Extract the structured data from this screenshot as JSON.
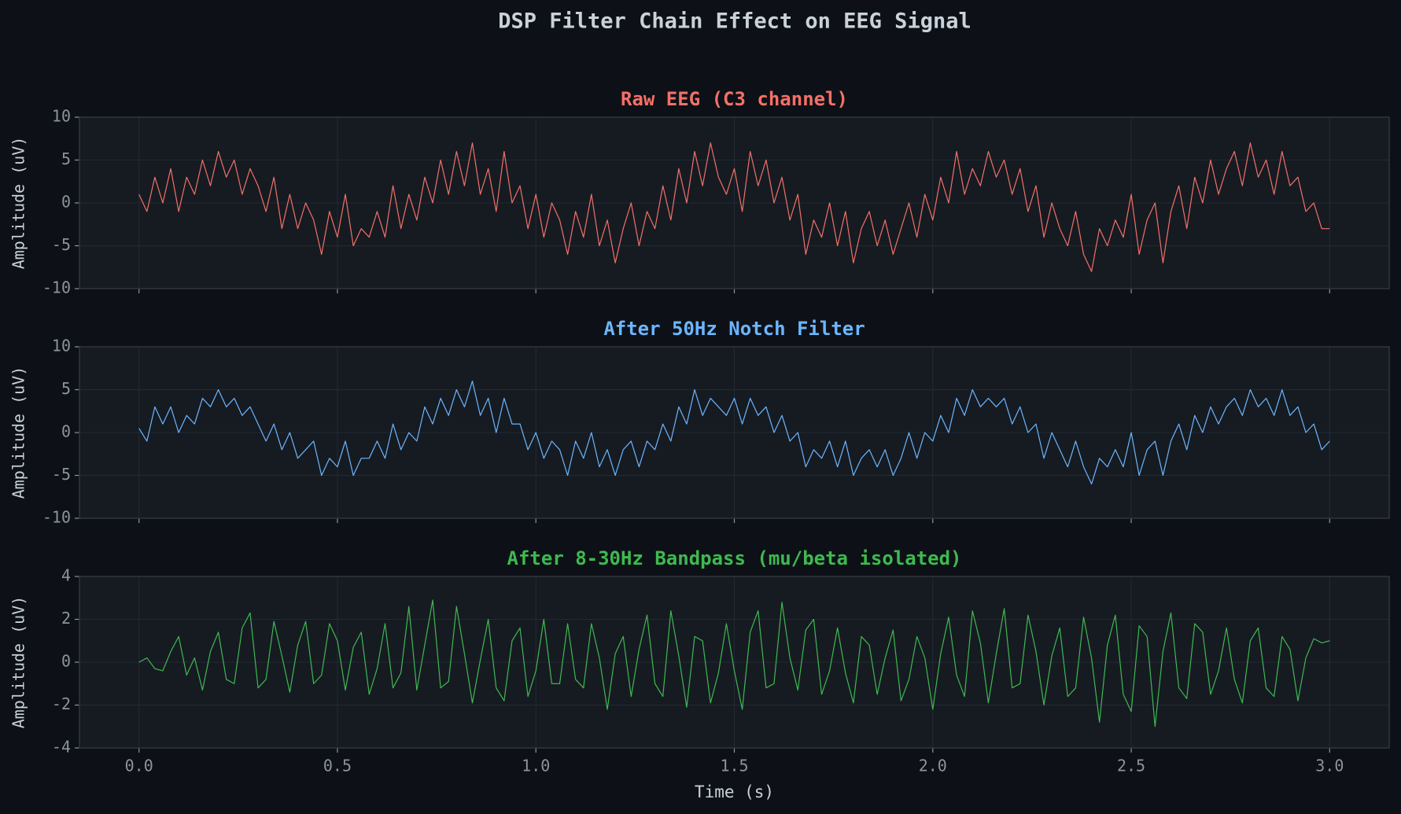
{
  "title": "DSP Filter Chain Effect on EEG Signal",
  "chart_data": [
    {
      "type": "line",
      "title": "Raw EEG (C3 channel)",
      "ylabel": "Amplitude (uV)",
      "x": [
        0,
        0.02,
        0.04,
        0.06,
        0.08,
        0.1,
        0.12,
        0.14,
        0.16,
        0.18,
        0.2,
        0.22,
        0.24,
        0.26,
        0.28,
        0.3,
        0.32,
        0.34,
        0.36,
        0.38,
        0.4,
        0.42,
        0.44,
        0.46,
        0.48,
        0.5,
        0.52,
        0.54,
        0.56,
        0.58,
        0.6,
        0.62,
        0.64,
        0.66,
        0.68,
        0.7,
        0.72,
        0.74,
        0.76,
        0.78,
        0.8,
        0.82,
        0.84,
        0.86,
        0.88,
        0.9,
        0.92,
        0.94,
        0.96,
        0.98,
        1,
        1.02,
        1.04,
        1.06,
        1.08,
        1.1,
        1.12,
        1.14,
        1.16,
        1.18,
        1.2,
        1.22,
        1.24,
        1.26,
        1.28,
        1.3,
        1.32,
        1.34,
        1.36,
        1.38,
        1.4,
        1.42,
        1.44,
        1.46,
        1.48,
        1.5,
        1.52,
        1.54,
        1.56,
        1.58,
        1.6,
        1.62,
        1.64,
        1.66,
        1.68,
        1.7,
        1.72,
        1.74,
        1.76,
        1.78,
        1.8,
        1.82,
        1.84,
        1.86,
        1.88,
        1.9,
        1.92,
        1.94,
        1.96,
        1.98,
        2,
        2.02,
        2.04,
        2.06,
        2.08,
        2.1,
        2.12,
        2.14,
        2.16,
        2.18,
        2.2,
        2.22,
        2.24,
        2.26,
        2.28,
        2.3,
        2.32,
        2.34,
        2.36,
        2.38,
        2.4,
        2.42,
        2.44,
        2.46,
        2.48,
        2.5,
        2.52,
        2.54,
        2.56,
        2.58,
        2.6,
        2.62,
        2.64,
        2.66,
        2.68,
        2.7,
        2.72,
        2.74,
        2.76,
        2.78,
        2.8,
        2.82,
        2.84,
        2.86,
        2.88,
        2.9,
        2.92,
        2.94,
        2.96,
        2.98,
        3
      ],
      "series": [
        {
          "color": "#f47067",
          "values": [
            1,
            -1,
            3,
            0,
            4,
            -1,
            3,
            1,
            5,
            2,
            6,
            3,
            5,
            1,
            4,
            2,
            -1,
            3,
            -3,
            1,
            -3,
            0,
            -2,
            -6,
            -1,
            -4,
            1,
            -5,
            -3,
            -4,
            -1,
            -4,
            2,
            -3,
            1,
            -2,
            3,
            0,
            5,
            1,
            6,
            2,
            7,
            1,
            4,
            -1,
            6,
            0,
            2,
            -3,
            1,
            -4,
            0,
            -2,
            -6,
            -1,
            -4,
            1,
            -5,
            -2,
            -7,
            -3,
            0,
            -5,
            -1,
            -3,
            2,
            -2,
            4,
            0,
            6,
            2,
            7,
            3,
            1,
            4,
            -1,
            6,
            2,
            5,
            0,
            3,
            -2,
            1,
            -6,
            -2,
            -4,
            0,
            -5,
            -1,
            -7,
            -3,
            -1,
            -5,
            -2,
            -6,
            -3,
            0,
            -4,
            1,
            -2,
            3,
            0,
            6,
            1,
            4,
            2,
            6,
            3,
            5,
            1,
            4,
            -1,
            2,
            -4,
            0,
            -3,
            -5,
            -1,
            -6,
            -8,
            -3,
            -5,
            -2,
            -4,
            1,
            -6,
            -2,
            0,
            -7,
            -1,
            2,
            -3,
            3,
            0,
            5,
            1,
            4,
            6,
            2,
            7,
            3,
            5,
            1,
            6,
            2,
            3,
            -1,
            0,
            -3,
            -3
          ]
        }
      ],
      "xlim": [
        -0.15,
        3.15
      ],
      "xticks": [
        0,
        0.5,
        1,
        1.5,
        2,
        2.5,
        3
      ],
      "ylim": [
        -10,
        10
      ],
      "yticks": [
        -10,
        -5,
        0,
        5,
        10
      ],
      "grid": true
    },
    {
      "type": "line",
      "title": "After 50Hz Notch Filter",
      "ylabel": "Amplitude (uV)",
      "x": [
        0,
        0.02,
        0.04,
        0.06,
        0.08,
        0.1,
        0.12,
        0.14,
        0.16,
        0.18,
        0.2,
        0.22,
        0.24,
        0.26,
        0.28,
        0.3,
        0.32,
        0.34,
        0.36,
        0.38,
        0.4,
        0.42,
        0.44,
        0.46,
        0.48,
        0.5,
        0.52,
        0.54,
        0.56,
        0.58,
        0.6,
        0.62,
        0.64,
        0.66,
        0.68,
        0.7,
        0.72,
        0.74,
        0.76,
        0.78,
        0.8,
        0.82,
        0.84,
        0.86,
        0.88,
        0.9,
        0.92,
        0.94,
        0.96,
        0.98,
        1,
        1.02,
        1.04,
        1.06,
        1.08,
        1.1,
        1.12,
        1.14,
        1.16,
        1.18,
        1.2,
        1.22,
        1.24,
        1.26,
        1.28,
        1.3,
        1.32,
        1.34,
        1.36,
        1.38,
        1.4,
        1.42,
        1.44,
        1.46,
        1.48,
        1.5,
        1.52,
        1.54,
        1.56,
        1.58,
        1.6,
        1.62,
        1.64,
        1.66,
        1.68,
        1.7,
        1.72,
        1.74,
        1.76,
        1.78,
        1.8,
        1.82,
        1.84,
        1.86,
        1.88,
        1.9,
        1.92,
        1.94,
        1.96,
        1.98,
        2,
        2.02,
        2.04,
        2.06,
        2.08,
        2.1,
        2.12,
        2.14,
        2.16,
        2.18,
        2.2,
        2.22,
        2.24,
        2.26,
        2.28,
        2.3,
        2.32,
        2.34,
        2.36,
        2.38,
        2.4,
        2.42,
        2.44,
        2.46,
        2.48,
        2.5,
        2.52,
        2.54,
        2.56,
        2.58,
        2.6,
        2.62,
        2.64,
        2.66,
        2.68,
        2.7,
        2.72,
        2.74,
        2.76,
        2.78,
        2.8,
        2.82,
        2.84,
        2.86,
        2.88,
        2.9,
        2.92,
        2.94,
        2.96,
        2.98,
        3
      ],
      "series": [
        {
          "color": "#6cb6ff",
          "values": [
            0.5,
            -1,
            3,
            1,
            3,
            0,
            2,
            1,
            4,
            3,
            5,
            3,
            4,
            2,
            3,
            1,
            -1,
            1,
            -2,
            0,
            -3,
            -2,
            -1,
            -5,
            -3,
            -4,
            -1,
            -5,
            -3,
            -3,
            -1,
            -3,
            1,
            -2,
            0,
            -1,
            3,
            1,
            4,
            2,
            5,
            3,
            6,
            2,
            4,
            0,
            4,
            1,
            1,
            -2,
            0,
            -3,
            -1,
            -2,
            -5,
            -1,
            -3,
            0,
            -4,
            -2,
            -5,
            -2,
            -1,
            -4,
            -1,
            -2,
            1,
            -1,
            3,
            1,
            5,
            2,
            4,
            3,
            2,
            4,
            1,
            4,
            2,
            3,
            0,
            2,
            -1,
            0,
            -4,
            -2,
            -3,
            -1,
            -4,
            -1,
            -5,
            -3,
            -2,
            -4,
            -2,
            -5,
            -3,
            0,
            -3,
            0,
            -1,
            2,
            0,
            4,
            2,
            5,
            3,
            4,
            3,
            4,
            1,
            3,
            0,
            1,
            -3,
            0,
            -2,
            -4,
            -1,
            -4,
            -6,
            -3,
            -4,
            -2,
            -4,
            0,
            -5,
            -2,
            -1,
            -5,
            -1,
            1,
            -2,
            2,
            0,
            3,
            1,
            3,
            4,
            2,
            5,
            3,
            4,
            2,
            5,
            2,
            3,
            0,
            1,
            -2,
            -1
          ]
        }
      ],
      "xlim": [
        -0.15,
        3.15
      ],
      "xticks": [
        0,
        0.5,
        1,
        1.5,
        2,
        2.5,
        3
      ],
      "ylim": [
        -10,
        10
      ],
      "yticks": [
        -10,
        -5,
        0,
        5,
        10
      ],
      "grid": true
    },
    {
      "type": "line",
      "title": "After 8-30Hz Bandpass (mu/beta isolated)",
      "ylabel": "Amplitude (uV)",
      "xlabel": "Time (s)",
      "x": [
        0,
        0.02,
        0.04,
        0.06,
        0.08,
        0.1,
        0.12,
        0.14,
        0.16,
        0.18,
        0.2,
        0.22,
        0.24,
        0.26,
        0.28,
        0.3,
        0.32,
        0.34,
        0.36,
        0.38,
        0.4,
        0.42,
        0.44,
        0.46,
        0.48,
        0.5,
        0.52,
        0.54,
        0.56,
        0.58,
        0.6,
        0.62,
        0.64,
        0.66,
        0.68,
        0.7,
        0.72,
        0.74,
        0.76,
        0.78,
        0.8,
        0.82,
        0.84,
        0.86,
        0.88,
        0.9,
        0.92,
        0.94,
        0.96,
        0.98,
        1,
        1.02,
        1.04,
        1.06,
        1.08,
        1.1,
        1.12,
        1.14,
        1.16,
        1.18,
        1.2,
        1.22,
        1.24,
        1.26,
        1.28,
        1.3,
        1.32,
        1.34,
        1.36,
        1.38,
        1.4,
        1.42,
        1.44,
        1.46,
        1.48,
        1.5,
        1.52,
        1.54,
        1.56,
        1.58,
        1.6,
        1.62,
        1.64,
        1.66,
        1.68,
        1.7,
        1.72,
        1.74,
        1.76,
        1.78,
        1.8,
        1.82,
        1.84,
        1.86,
        1.88,
        1.9,
        1.92,
        1.94,
        1.96,
        1.98,
        2,
        2.02,
        2.04,
        2.06,
        2.08,
        2.1,
        2.12,
        2.14,
        2.16,
        2.18,
        2.2,
        2.22,
        2.24,
        2.26,
        2.28,
        2.3,
        2.32,
        2.34,
        2.36,
        2.38,
        2.4,
        2.42,
        2.44,
        2.46,
        2.48,
        2.5,
        2.52,
        2.54,
        2.56,
        2.58,
        2.6,
        2.62,
        2.64,
        2.66,
        2.68,
        2.7,
        2.72,
        2.74,
        2.76,
        2.78,
        2.8,
        2.82,
        2.84,
        2.86,
        2.88,
        2.9,
        2.92,
        2.94,
        2.96,
        2.98,
        3
      ],
      "series": [
        {
          "color": "#3fb950",
          "values": [
            0,
            0.2,
            -0.3,
            -0.4,
            0.5,
            1.2,
            -0.6,
            0.2,
            -1.3,
            0.5,
            1.4,
            -0.8,
            -1.0,
            1.6,
            2.3,
            -1.2,
            -0.8,
            1.9,
            0.3,
            -1.4,
            0.8,
            1.9,
            -1.0,
            -0.6,
            1.8,
            1.0,
            -1.3,
            0.7,
            1.4,
            -1.5,
            -0.3,
            1.8,
            -1.2,
            -0.5,
            2.6,
            -1.3,
            0.8,
            2.9,
            -1.2,
            -0.9,
            2.6,
            0.4,
            -1.9,
            0.1,
            2.0,
            -1.2,
            -1.8,
            1.0,
            1.6,
            -1.6,
            -0.4,
            2.0,
            -1.0,
            -1.0,
            1.8,
            -0.8,
            -1.2,
            1.8,
            0.2,
            -2.2,
            0.4,
            1.2,
            -1.6,
            0.6,
            2.2,
            -1.0,
            -1.6,
            2.4,
            0.3,
            -2.1,
            1.2,
            1.0,
            -1.9,
            -0.5,
            1.8,
            -0.4,
            -2.2,
            1.4,
            2.4,
            -1.2,
            -1.0,
            2.8,
            0.2,
            -1.3,
            1.5,
            2.0,
            -1.5,
            -0.4,
            1.6,
            -0.5,
            -1.9,
            1.2,
            0.8,
            -1.5,
            0.2,
            1.5,
            -1.8,
            -0.8,
            1.2,
            0.2,
            -2.2,
            0.4,
            2.1,
            -0.6,
            -1.6,
            2.4,
            0.9,
            -1.9,
            0.4,
            2.5,
            -1.2,
            -1.0,
            2.2,
            0.5,
            -2.0,
            0.3,
            1.6,
            -1.6,
            -1.2,
            2.1,
            0.2,
            -2.8,
            0.8,
            2.2,
            -1.5,
            -2.3,
            1.7,
            1.2,
            -3.0,
            0.5,
            2.3,
            -1.2,
            -1.7,
            1.8,
            1.4,
            -1.5,
            -0.4,
            1.6,
            -0.8,
            -1.9,
            1.0,
            1.6,
            -1.2,
            -1.6,
            1.2,
            0.6,
            -1.8,
            0.2,
            1.1,
            0.9,
            1.0
          ]
        }
      ],
      "xlim": [
        -0.15,
        3.15
      ],
      "xticks": [
        {
          "value": 0,
          "label": "0.0"
        },
        0.5,
        {
          "value": 1,
          "label": "1.0"
        },
        1.5,
        {
          "value": 2,
          "label": "2.0"
        },
        2.5,
        {
          "value": 3,
          "label": "3.0"
        }
      ],
      "ylim": [
        -4,
        4
      ],
      "yticks": [
        -4,
        -2,
        0,
        2,
        4
      ],
      "grid": true
    }
  ]
}
